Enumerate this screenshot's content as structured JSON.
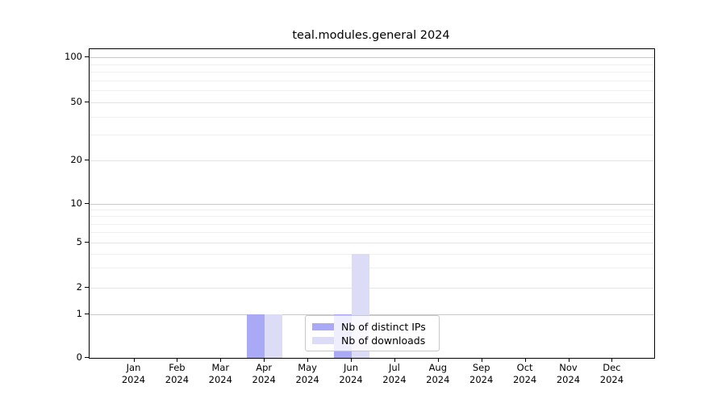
{
  "chart_data": {
    "type": "bar",
    "title": "teal.modules.general 2024",
    "categories": [
      "Jan",
      "Feb",
      "Mar",
      "Apr",
      "May",
      "Jun",
      "Jul",
      "Aug",
      "Sep",
      "Oct",
      "Nov",
      "Dec"
    ],
    "category_year": "2024",
    "series": [
      {
        "name": "Nb of distinct IPs",
        "color": "#a9a9f5",
        "values": [
          0,
          0,
          0,
          1,
          0,
          1,
          0,
          0,
          0,
          0,
          0,
          0
        ]
      },
      {
        "name": "Nb of downloads",
        "color": "#dcdcf7",
        "values": [
          0,
          0,
          0,
          1,
          0,
          4,
          0,
          0,
          0,
          0,
          0,
          0
        ]
      }
    ],
    "xlabel": "",
    "ylabel": "",
    "yaxis": {
      "scale": "log-like (linear below 1)",
      "tick_values": [
        0,
        1,
        2,
        5,
        10,
        20,
        50,
        100
      ],
      "tick_labels": [
        "0",
        "1",
        "2",
        "5",
        "10",
        "20",
        "50",
        "100"
      ],
      "major_gridline_values": [
        1,
        10,
        100
      ],
      "minor_gridline_values": [
        3,
        4,
        6,
        7,
        8,
        9,
        30,
        40,
        60,
        70,
        80,
        90
      ],
      "ylim": [
        0,
        115
      ]
    },
    "grid": true,
    "legend": {
      "position": "lower-center-inside",
      "entries": [
        "Nb of distinct IPs",
        "Nb of downloads"
      ]
    }
  }
}
